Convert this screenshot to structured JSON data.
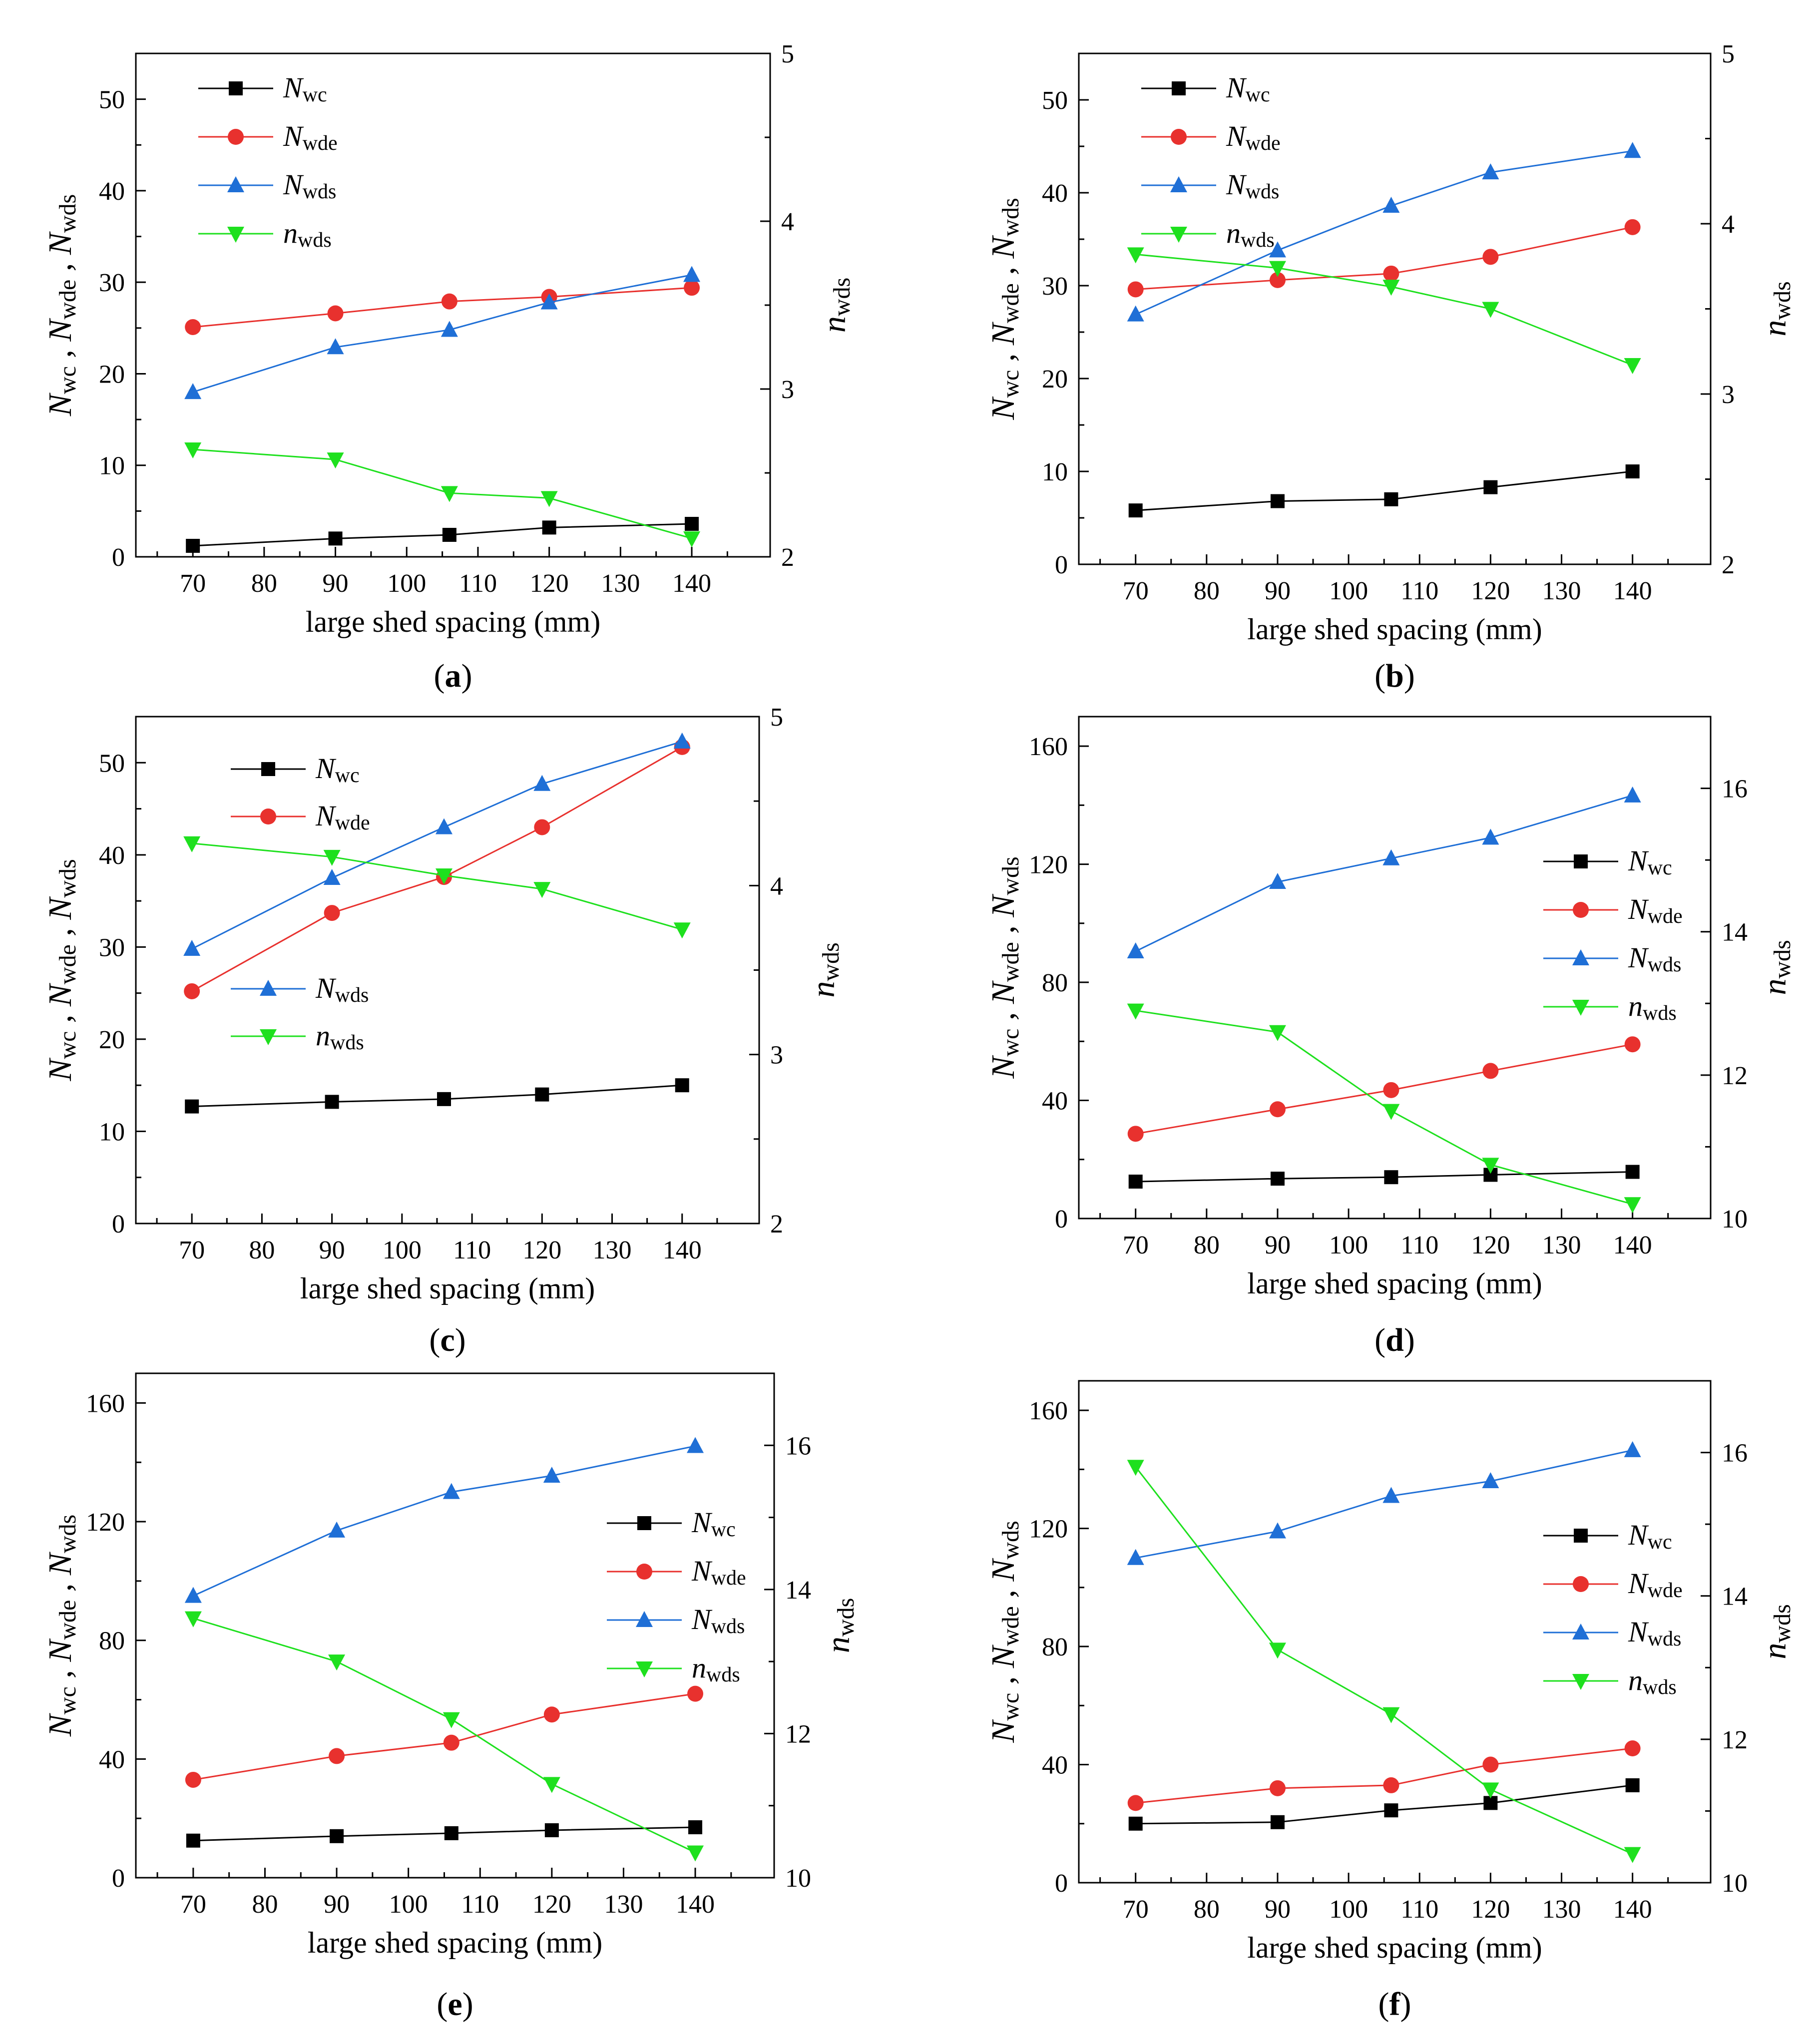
{
  "x_categories": [
    70,
    80,
    90,
    100,
    110,
    120,
    130,
    140
  ],
  "legend_labels": {
    "nwc": {
      "base": "N",
      "sub": "wc"
    },
    "nwde": {
      "base": "N",
      "sub": "wde"
    },
    "nwds": {
      "base": "N",
      "sub": "wds"
    },
    "nwds_ratio": {
      "base": "n",
      "sub": "wds"
    }
  },
  "colors": {
    "nwc": "#000000",
    "nwde": "#e8312e",
    "nwds": "#1f6fd6",
    "nwds_ratio": "#1ee01e"
  },
  "chart_data": [
    {
      "type": "line",
      "panel_label": "(a)",
      "xlabel": "large shed spacing (mm)",
      "ylabel_left": {
        "parts": [
          "N",
          "wc",
          " , N",
          "wde",
          " , N",
          "wds"
        ]
      },
      "ylabel_right": {
        "parts": [
          "n",
          "wds"
        ]
      },
      "xlim": [
        62,
        151
      ],
      "ylim_left": [
        0,
        55
      ],
      "yticks_left": [
        0,
        10,
        20,
        30,
        40,
        50
      ],
      "ylim_right": [
        2,
        5
      ],
      "yticks_right": [
        2,
        3,
        4,
        5
      ],
      "xticks": [
        70,
        80,
        90,
        100,
        110,
        120,
        130,
        140
      ],
      "legend_position": "top-left",
      "legend_layout": "single",
      "series": [
        {
          "key": "nwc",
          "axis": "left",
          "marker": "square",
          "x": [
            70,
            90,
            106,
            120,
            140
          ],
          "y": [
            1.2,
            2.0,
            2.4,
            3.2,
            3.6
          ]
        },
        {
          "key": "nwde",
          "axis": "left",
          "marker": "circle",
          "x": [
            70,
            90,
            106,
            120,
            140
          ],
          "y": [
            25.1,
            26.6,
            27.9,
            28.4,
            29.4
          ]
        },
        {
          "key": "nwds",
          "axis": "left",
          "marker": "triangle-up",
          "x": [
            70,
            90,
            106,
            120,
            140
          ],
          "y": [
            18.0,
            22.9,
            24.8,
            27.8,
            30.8
          ]
        },
        {
          "key": "nwds_ratio",
          "axis": "right",
          "marker": "triangle-down",
          "x": [
            70,
            90,
            106,
            120,
            140
          ],
          "y": [
            2.64,
            2.58,
            2.38,
            2.35,
            2.11
          ]
        }
      ]
    },
    {
      "type": "line",
      "panel_label": "(b)",
      "xlabel": "large shed spacing (mm)",
      "ylabel_left": {
        "parts": [
          "N",
          "wc",
          " , N",
          "wde",
          " , N",
          "wds"
        ]
      },
      "ylabel_right": {
        "parts": [
          "n",
          "wds"
        ]
      },
      "xlim": [
        62,
        151
      ],
      "ylim_left": [
        0,
        55
      ],
      "yticks_left": [
        0,
        10,
        20,
        30,
        40,
        50
      ],
      "ylim_right": [
        2,
        5
      ],
      "yticks_right": [
        2,
        3,
        4,
        5
      ],
      "xticks": [
        70,
        80,
        90,
        100,
        110,
        120,
        130,
        140
      ],
      "legend_position": "top-left",
      "legend_layout": "single",
      "series": [
        {
          "key": "nwc",
          "axis": "left",
          "marker": "square",
          "x": [
            70,
            90,
            106,
            120,
            140
          ],
          "y": [
            5.8,
            6.8,
            7.0,
            8.3,
            10.0
          ]
        },
        {
          "key": "nwde",
          "axis": "left",
          "marker": "circle",
          "x": [
            70,
            90,
            106,
            120,
            140
          ],
          "y": [
            29.6,
            30.6,
            31.3,
            33.1,
            36.3
          ]
        },
        {
          "key": "nwds",
          "axis": "left",
          "marker": "triangle-up",
          "x": [
            70,
            90,
            106,
            120,
            140
          ],
          "y": [
            26.9,
            33.8,
            38.6,
            42.2,
            44.5
          ]
        },
        {
          "key": "nwds_ratio",
          "axis": "right",
          "marker": "triangle-down",
          "x": [
            70,
            90,
            106,
            120,
            140
          ],
          "y": [
            3.82,
            3.74,
            3.63,
            3.5,
            3.17
          ]
        }
      ]
    },
    {
      "type": "line",
      "panel_label": "(c)",
      "xlabel": "large shed spacing (mm)",
      "ylabel_left": {
        "parts": [
          "N",
          "wc",
          " , N",
          "wde",
          " , N",
          "wds"
        ]
      },
      "ylabel_right": {
        "parts": [
          "n",
          "wds"
        ]
      },
      "xlim": [
        62,
        151
      ],
      "ylim_left": [
        0,
        55
      ],
      "yticks_left": [
        0,
        10,
        20,
        30,
        40,
        50
      ],
      "ylim_right": [
        2,
        5
      ],
      "yticks_right": [
        2,
        3,
        4,
        5
      ],
      "xticks": [
        70,
        80,
        90,
        100,
        110,
        120,
        130,
        140
      ],
      "legend_position": "left",
      "legend_layout": "split",
      "series": [
        {
          "key": "nwc",
          "axis": "left",
          "marker": "square",
          "x": [
            70,
            90,
            106,
            120,
            140
          ],
          "y": [
            12.7,
            13.2,
            13.5,
            14.0,
            15.0
          ]
        },
        {
          "key": "nwde",
          "axis": "left",
          "marker": "circle",
          "x": [
            70,
            90,
            106,
            120,
            140
          ],
          "y": [
            25.2,
            33.7,
            37.6,
            43.0,
            51.7
          ]
        },
        {
          "key": "nwds",
          "axis": "left",
          "marker": "triangle-up",
          "x": [
            70,
            90,
            106,
            120,
            140
          ],
          "y": [
            29.8,
            37.5,
            43.0,
            47.7,
            52.3
          ]
        },
        {
          "key": "nwds_ratio",
          "axis": "right",
          "marker": "triangle-down",
          "x": [
            70,
            90,
            106,
            120,
            140
          ],
          "y": [
            4.25,
            4.17,
            4.06,
            3.98,
            3.74
          ]
        }
      ]
    },
    {
      "type": "line",
      "panel_label": "(d)",
      "xlabel": "large shed spacing (mm)",
      "ylabel_left": {
        "parts": [
          "N",
          "wc",
          " , N",
          "wde",
          " , N",
          "wds"
        ]
      },
      "ylabel_right": {
        "parts": [
          "n",
          "wds"
        ]
      },
      "xlim": [
        62,
        151
      ],
      "ylim_left": [
        0,
        170
      ],
      "yticks_left": [
        0,
        40,
        80,
        120,
        160
      ],
      "ylim_right": [
        10,
        17
      ],
      "yticks_right": [
        10,
        12,
        14,
        16
      ],
      "xticks": [
        70,
        80,
        90,
        100,
        110,
        120,
        130,
        140
      ],
      "legend_position": "right",
      "legend_layout": "single",
      "series": [
        {
          "key": "nwc",
          "axis": "left",
          "marker": "square",
          "x": [
            70,
            90,
            106,
            120,
            140
          ],
          "y": [
            12.5,
            13.5,
            14.0,
            14.8,
            15.8
          ]
        },
        {
          "key": "nwde",
          "axis": "left",
          "marker": "circle",
          "x": [
            70,
            90,
            106,
            120,
            140
          ],
          "y": [
            28.7,
            37.0,
            43.5,
            50.0,
            59.0
          ]
        },
        {
          "key": "nwds",
          "axis": "left",
          "marker": "triangle-up",
          "x": [
            70,
            90,
            106,
            120,
            140
          ],
          "y": [
            90.5,
            114.0,
            122.0,
            129.0,
            143.3
          ]
        },
        {
          "key": "nwds_ratio",
          "axis": "right",
          "marker": "triangle-down",
          "x": [
            70,
            90,
            106,
            120,
            140
          ],
          "y": [
            12.9,
            12.6,
            11.5,
            10.75,
            10.2
          ]
        }
      ]
    },
    {
      "type": "line",
      "panel_label": "(e)",
      "xlabel": "large shed spacing (mm)",
      "ylabel_left": {
        "parts": [
          "N",
          "wc",
          " , N",
          "wde",
          " , N",
          "wds"
        ]
      },
      "ylabel_right": {
        "parts": [
          "n",
          "wds"
        ]
      },
      "xlim": [
        62,
        151
      ],
      "ylim_left": [
        0,
        170
      ],
      "yticks_left": [
        0,
        40,
        80,
        120,
        160
      ],
      "ylim_right": [
        10,
        17
      ],
      "yticks_right": [
        10,
        12,
        14,
        16
      ],
      "xticks": [
        70,
        80,
        90,
        100,
        110,
        120,
        130,
        140
      ],
      "legend_position": "right",
      "legend_layout": "single",
      "series": [
        {
          "key": "nwc",
          "axis": "left",
          "marker": "square",
          "x": [
            70,
            90,
            106,
            120,
            140
          ],
          "y": [
            12.5,
            14.0,
            15.0,
            16.0,
            17.0
          ]
        },
        {
          "key": "nwde",
          "axis": "left",
          "marker": "circle",
          "x": [
            70,
            90,
            106,
            120,
            140
          ],
          "y": [
            33.0,
            41.0,
            45.5,
            55.0,
            62.0
          ]
        },
        {
          "key": "nwds",
          "axis": "left",
          "marker": "triangle-up",
          "x": [
            70,
            90,
            106,
            120,
            140
          ],
          "y": [
            95.0,
            117.0,
            130.0,
            135.5,
            145.5
          ]
        },
        {
          "key": "nwds_ratio",
          "axis": "right",
          "marker": "triangle-down",
          "x": [
            70,
            90,
            106,
            120,
            140
          ],
          "y": [
            13.6,
            13.0,
            12.2,
            11.3,
            10.35
          ]
        }
      ]
    },
    {
      "type": "line",
      "panel_label": "(f)",
      "xlabel": "large shed spacing (mm)",
      "ylabel_left": {
        "parts": [
          "N",
          "wc",
          " , N",
          "wde",
          " , N",
          "wds"
        ]
      },
      "ylabel_right": {
        "parts": [
          "n",
          "wds"
        ]
      },
      "xlim": [
        62,
        151
      ],
      "ylim_left": [
        0,
        170
      ],
      "yticks_left": [
        0,
        40,
        80,
        120,
        160
      ],
      "ylim_right": [
        10,
        17
      ],
      "yticks_right": [
        10,
        12,
        14,
        16
      ],
      "xticks": [
        70,
        80,
        90,
        100,
        110,
        120,
        130,
        140
      ],
      "legend_position": "right",
      "legend_layout": "single",
      "series": [
        {
          "key": "nwc",
          "axis": "left",
          "marker": "square",
          "x": [
            70,
            90,
            106,
            120,
            140
          ],
          "y": [
            20.0,
            20.5,
            24.5,
            27.0,
            33.0
          ]
        },
        {
          "key": "nwde",
          "axis": "left",
          "marker": "circle",
          "x": [
            70,
            90,
            106,
            120,
            140
          ],
          "y": [
            27.0,
            32.0,
            33.0,
            40.0,
            45.5
          ]
        },
        {
          "key": "nwds",
          "axis": "left",
          "marker": "triangle-up",
          "x": [
            70,
            90,
            106,
            120,
            140
          ],
          "y": [
            110.0,
            119.0,
            131.0,
            136.0,
            146.5
          ]
        },
        {
          "key": "nwds_ratio",
          "axis": "right",
          "marker": "triangle-down",
          "x": [
            70,
            90,
            106,
            120,
            140
          ],
          "y": [
            15.8,
            13.25,
            12.35,
            11.3,
            10.4
          ]
        }
      ]
    }
  ]
}
